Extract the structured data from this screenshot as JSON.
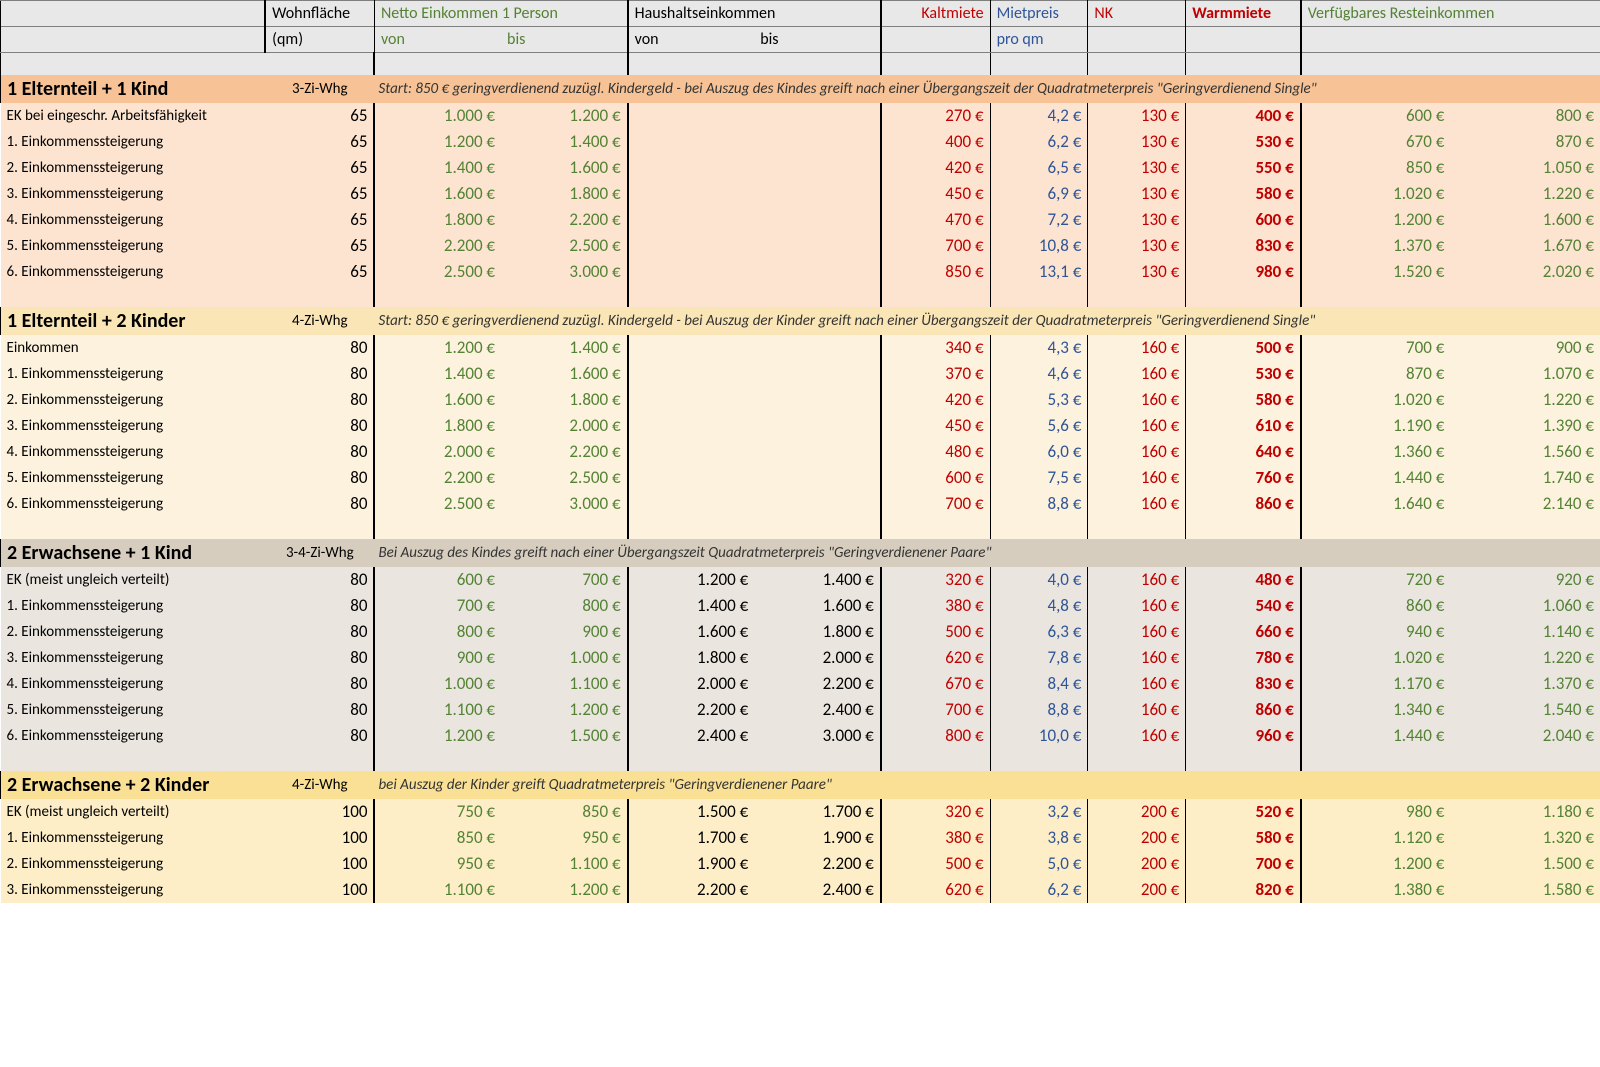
{
  "header": {
    "wohn1": "Wohnfläche",
    "wohn2": "(qm)",
    "net_title": "Netto Einkommen 1 Person",
    "net_von": "von",
    "net_bis": "bis",
    "hh_title": "Haushaltseinkommen",
    "hh_von": "von",
    "hh_bis": "bis",
    "kalt": "Kaltmiete",
    "mpqm1": "Mietpreis",
    "mpqm2": "pro qm",
    "nk": "NK",
    "warm": "Warmmiete",
    "rest": "Verfügbares Resteinkommen"
  },
  "colors": {
    "green": "#548235",
    "red": "#c00000",
    "blue": "#2f5597",
    "hdr_bg": "#e8e8e8",
    "sec1_row": "#fde4d0",
    "sec1_hdr": "#f7c396",
    "sec2_row": "#fdf2dd",
    "sec2_hdr": "#fae5b6",
    "sec3_row": "#eae6df",
    "sec3_hdr": "#d6cdbe",
    "sec4_row": "#fdeec8",
    "sec4_hdr": "#fae094"
  },
  "sections": [
    {
      "title": "1 Elternteil + 1 Kind",
      "whg": "3-Zi-Whg",
      "desc": "Start: 850 € geringverdienend zuzügl. Kindergeld - bei Auszug des Kindes greift nach einer Übergangszeit der Quadratmeterpreis \"Geringverdienend Single\"",
      "bg_hdr": "bg-peach1h",
      "bg_row": "bg-peach1",
      "rows": [
        {
          "label": "EK bei eingeschr. Arbeitsfähigkeit",
          "wohn": "65",
          "n1": "1.000 €",
          "n2": "1.200 €",
          "h1": "",
          "h2": "",
          "kalt": "270 €",
          "mpqm": "4,2 €",
          "nk": "130 €",
          "warm": "400 €",
          "r1": "600 €",
          "r2": "800 €"
        },
        {
          "label": "1. Einkommenssteigerung",
          "wohn": "65",
          "n1": "1.200 €",
          "n2": "1.400 €",
          "h1": "",
          "h2": "",
          "kalt": "400 €",
          "mpqm": "6,2 €",
          "nk": "130 €",
          "warm": "530 €",
          "r1": "670 €",
          "r2": "870 €"
        },
        {
          "label": "2. Einkommenssteigerung",
          "wohn": "65",
          "n1": "1.400 €",
          "n2": "1.600 €",
          "h1": "",
          "h2": "",
          "kalt": "420 €",
          "mpqm": "6,5 €",
          "nk": "130 €",
          "warm": "550 €",
          "r1": "850 €",
          "r2": "1.050 €"
        },
        {
          "label": "3. Einkommenssteigerung",
          "wohn": "65",
          "n1": "1.600 €",
          "n2": "1.800 €",
          "h1": "",
          "h2": "",
          "kalt": "450 €",
          "mpqm": "6,9 €",
          "nk": "130 €",
          "warm": "580 €",
          "r1": "1.020 €",
          "r2": "1.220 €"
        },
        {
          "label": "4. Einkommenssteigerung",
          "wohn": "65",
          "n1": "1.800 €",
          "n2": "2.200 €",
          "h1": "",
          "h2": "",
          "kalt": "470 €",
          "mpqm": "7,2 €",
          "nk": "130 €",
          "warm": "600 €",
          "r1": "1.200 €",
          "r2": "1.600 €"
        },
        {
          "label": "5. Einkommenssteigerung",
          "wohn": "65",
          "n1": "2.200 €",
          "n2": "2.500 €",
          "h1": "",
          "h2": "",
          "kalt": "700 €",
          "mpqm": "10,8 €",
          "nk": "130 €",
          "warm": "830 €",
          "r1": "1.370 €",
          "r2": "1.670 €"
        },
        {
          "label": "6. Einkommenssteigerung",
          "wohn": "65",
          "n1": "2.500 €",
          "n2": "3.000 €",
          "h1": "",
          "h2": "",
          "kalt": "850 €",
          "mpqm": "13,1 €",
          "nk": "130 €",
          "warm": "980 €",
          "r1": "1.520 €",
          "r2": "2.020 €"
        }
      ]
    },
    {
      "title": "1 Elternteil + 2 Kinder",
      "whg": "4-Zi-Whg",
      "desc": "Start: 850 € geringverdienend zuzügl. Kindergeld - bei Auszug der Kinder greift nach einer Übergangszeit der Quadratmeterpreis \"Geringverdienend Single\"",
      "bg_hdr": "bg-cream2h",
      "bg_row": "bg-cream2",
      "rows": [
        {
          "label": "Einkommen",
          "wohn": "80",
          "n1": "1.200 €",
          "n2": "1.400 €",
          "h1": "",
          "h2": "",
          "kalt": "340 €",
          "mpqm": "4,3 €",
          "nk": "160 €",
          "warm": "500 €",
          "r1": "700 €",
          "r2": "900 €"
        },
        {
          "label": "1. Einkommenssteigerung",
          "wohn": "80",
          "n1": "1.400 €",
          "n2": "1.600 €",
          "h1": "",
          "h2": "",
          "kalt": "370 €",
          "mpqm": "4,6 €",
          "nk": "160 €",
          "warm": "530 €",
          "r1": "870 €",
          "r2": "1.070 €"
        },
        {
          "label": "2. Einkommenssteigerung",
          "wohn": "80",
          "n1": "1.600 €",
          "n2": "1.800 €",
          "h1": "",
          "h2": "",
          "kalt": "420 €",
          "mpqm": "5,3 €",
          "nk": "160 €",
          "warm": "580 €",
          "r1": "1.020 €",
          "r2": "1.220 €"
        },
        {
          "label": "3. Einkommenssteigerung",
          "wohn": "80",
          "n1": "1.800 €",
          "n2": "2.000 €",
          "h1": "",
          "h2": "",
          "kalt": "450 €",
          "mpqm": "5,6 €",
          "nk": "160 €",
          "warm": "610 €",
          "r1": "1.190 €",
          "r2": "1.390 €"
        },
        {
          "label": "4. Einkommenssteigerung",
          "wohn": "80",
          "n1": "2.000 €",
          "n2": "2.200 €",
          "h1": "",
          "h2": "",
          "kalt": "480 €",
          "mpqm": "6,0 €",
          "nk": "160 €",
          "warm": "640 €",
          "r1": "1.360 €",
          "r2": "1.560 €"
        },
        {
          "label": "5. Einkommenssteigerung",
          "wohn": "80",
          "n1": "2.200 €",
          "n2": "2.500 €",
          "h1": "",
          "h2": "",
          "kalt": "600 €",
          "mpqm": "7,5 €",
          "nk": "160 €",
          "warm": "760 €",
          "r1": "1.440 €",
          "r2": "1.740 €"
        },
        {
          "label": "6. Einkommenssteigerung",
          "wohn": "80",
          "n1": "2.500 €",
          "n2": "3.000 €",
          "h1": "",
          "h2": "",
          "kalt": "700 €",
          "mpqm": "8,8 €",
          "nk": "160 €",
          "warm": "860 €",
          "r1": "1.640 €",
          "r2": "2.140 €"
        }
      ]
    },
    {
      "title": "2 Erwachsene + 1 Kind",
      "whg": "3-4-Zi-Whg",
      "desc": "Bei Auszug des Kindes greift nach einer Übergangszeit Quadratmeterpreis \"Geringverdienener Paare\"",
      "bg_hdr": "bg-stone3h",
      "bg_row": "bg-stone3",
      "rows": [
        {
          "label": "EK (meist ungleich verteilt)",
          "wohn": "80",
          "n1": "600 €",
          "n2": "700 €",
          "h1": "1.200 €",
          "h2": "1.400 €",
          "kalt": "320 €",
          "mpqm": "4,0 €",
          "nk": "160 €",
          "warm": "480 €",
          "r1": "720 €",
          "r2": "920 €"
        },
        {
          "label": "1. Einkommenssteigerung",
          "wohn": "80",
          "n1": "700 €",
          "n2": "800 €",
          "h1": "1.400 €",
          "h2": "1.600 €",
          "kalt": "380 €",
          "mpqm": "4,8 €",
          "nk": "160 €",
          "warm": "540 €",
          "r1": "860 €",
          "r2": "1.060 €"
        },
        {
          "label": "2. Einkommenssteigerung",
          "wohn": "80",
          "n1": "800 €",
          "n2": "900 €",
          "h1": "1.600 €",
          "h2": "1.800 €",
          "kalt": "500 €",
          "mpqm": "6,3 €",
          "nk": "160 €",
          "warm": "660 €",
          "r1": "940 €",
          "r2": "1.140 €"
        },
        {
          "label": "3. Einkommenssteigerung",
          "wohn": "80",
          "n1": "900 €",
          "n2": "1.000 €",
          "h1": "1.800 €",
          "h2": "2.000 €",
          "kalt": "620 €",
          "mpqm": "7,8 €",
          "nk": "160 €",
          "warm": "780 €",
          "r1": "1.020 €",
          "r2": "1.220 €"
        },
        {
          "label": "4. Einkommenssteigerung",
          "wohn": "80",
          "n1": "1.000 €",
          "n2": "1.100 €",
          "h1": "2.000 €",
          "h2": "2.200 €",
          "kalt": "670 €",
          "mpqm": "8,4 €",
          "nk": "160 €",
          "warm": "830 €",
          "r1": "1.170 €",
          "r2": "1.370 €"
        },
        {
          "label": "5. Einkommenssteigerung",
          "wohn": "80",
          "n1": "1.100 €",
          "n2": "1.200 €",
          "h1": "2.200 €",
          "h2": "2.400 €",
          "kalt": "700 €",
          "mpqm": "8,8 €",
          "nk": "160 €",
          "warm": "860 €",
          "r1": "1.340 €",
          "r2": "1.540 €"
        },
        {
          "label": "6. Einkommenssteigerung",
          "wohn": "80",
          "n1": "1.200 €",
          "n2": "1.500 €",
          "h1": "2.400 €",
          "h2": "3.000 €",
          "kalt": "800 €",
          "mpqm": "10,0 €",
          "nk": "160 €",
          "warm": "960 €",
          "r1": "1.440 €",
          "r2": "2.040 €"
        }
      ]
    },
    {
      "title": "2 Erwachsene + 2 Kinder",
      "whg": "4-Zi-Whg",
      "desc": "bei Auszug der Kinder greift Quadratmeterpreis \"Geringverdienener Paare\"",
      "bg_hdr": "bg-gold4h",
      "bg_row": "bg-gold4",
      "rows": [
        {
          "label": "EK (meist ungleich verteilt)",
          "wohn": "100",
          "n1": "750 €",
          "n2": "850 €",
          "h1": "1.500 €",
          "h2": "1.700 €",
          "kalt": "320 €",
          "mpqm": "3,2 €",
          "nk": "200 €",
          "warm": "520 €",
          "r1": "980 €",
          "r2": "1.180 €"
        },
        {
          "label": "1. Einkommenssteigerung",
          "wohn": "100",
          "n1": "850 €",
          "n2": "950 €",
          "h1": "1.700 €",
          "h2": "1.900 €",
          "kalt": "380 €",
          "mpqm": "3,8 €",
          "nk": "200 €",
          "warm": "580 €",
          "r1": "1.120 €",
          "r2": "1.320 €"
        },
        {
          "label": "2. Einkommenssteigerung",
          "wohn": "100",
          "n1": "950 €",
          "n2": "1.100 €",
          "h1": "1.900 €",
          "h2": "2.200 €",
          "kalt": "500 €",
          "mpqm": "5,0 €",
          "nk": "200 €",
          "warm": "700 €",
          "r1": "1.200 €",
          "r2": "1.500 €"
        },
        {
          "label": "3. Einkommenssteigerung",
          "wohn": "100",
          "n1": "1.100 €",
          "n2": "1.200 €",
          "h1": "2.200 €",
          "h2": "2.400 €",
          "kalt": "620 €",
          "mpqm": "6,2 €",
          "nk": "200 €",
          "warm": "820 €",
          "r1": "1.380 €",
          "r2": "1.580 €"
        }
      ]
    }
  ]
}
